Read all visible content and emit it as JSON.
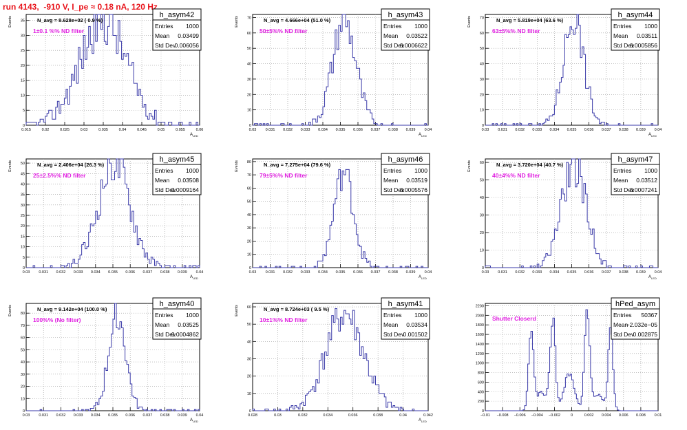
{
  "title": "run 4143,  -910 V, I_pe ≈ 0.18 nA, 120 Hz",
  "colors": {
    "histogram": "#3a3aa8",
    "title": "#e8141b",
    "annotation": "#e020e0",
    "grid": "#9a9a9a"
  },
  "chart_data": [
    {
      "type": "histogram",
      "name": "h_asym42",
      "stats": {
        "Entries": "1000",
        "Mean": "0.03499",
        "Std Dev": "0.006056"
      },
      "navg": "N_avg = 8.628e+02 ( 0.9 %)",
      "filter": "1±0.1 %% ND filter",
      "xlabel": "A_LED",
      "ylabel": "Events",
      "xlim": [
        0.015,
        0.06
      ],
      "ylim": [
        0,
        37
      ],
      "xticks": [
        "0.015",
        "0.02",
        "0.025",
        "0.03",
        "0.035",
        "0.04",
        "0.045",
        "0.05",
        "0.055",
        "0.06"
      ],
      "yticks": [
        "0",
        "5",
        "10",
        "15",
        "20",
        "25",
        "30",
        "35"
      ],
      "center": 0.035,
      "sigma": 0.006056,
      "nbins": 100,
      "peak": 35,
      "seed": 42
    },
    {
      "type": "histogram",
      "name": "h_asym43",
      "stats": {
        "Entries": "1000",
        "Mean": "0.03522",
        "Std Dev": "0.0006622"
      },
      "navg": "N_avg = 4.666e+04 (51.0 %)",
      "filter": "50±5%% ND filter",
      "xlabel": "A_LED",
      "ylabel": "Events",
      "xlim": [
        0.03,
        0.04
      ],
      "ylim": [
        0,
        72
      ],
      "xticks": [
        "0.03",
        "0.031",
        "0.032",
        "0.033",
        "0.034",
        "0.035",
        "0.036",
        "0.037",
        "0.038",
        "0.039",
        "0.04"
      ],
      "yticks": [
        "0",
        "10",
        "20",
        "30",
        "40",
        "50",
        "60",
        "70"
      ],
      "center": 0.03522,
      "sigma": 0.0006622,
      "nbins": 100,
      "peak": 68,
      "seed": 43
    },
    {
      "type": "histogram",
      "name": "h_asym44",
      "stats": {
        "Entries": "1000",
        "Mean": "0.03511",
        "Std Dev": "0.0005856"
      },
      "navg": "N_avg = 5.819e+04 (63.6 %)",
      "filter": "63±5%% ND filter",
      "xlabel": "A_LED",
      "ylabel": "Events",
      "xlim": [
        0.03,
        0.04
      ],
      "ylim": [
        0,
        72
      ],
      "xticks": [
        "0.03",
        "0.031",
        "0.032",
        "0.033",
        "0.034",
        "0.035",
        "0.036",
        "0.037",
        "0.038",
        "0.039",
        "0.04"
      ],
      "yticks": [
        "0",
        "10",
        "20",
        "30",
        "40",
        "50",
        "60",
        "70"
      ],
      "center": 0.03511,
      "sigma": 0.0005856,
      "nbins": 100,
      "peak": 70,
      "seed": 44
    },
    {
      "type": "histogram",
      "name": "h_asym45",
      "stats": {
        "Entries": "1000",
        "Mean": "0.03508",
        "Std Dev": "0.0009164"
      },
      "navg": "N_avg = 2.406e+04 (26.3 %)",
      "filter": "25±2.5%% ND filter",
      "xlabel": "A_LED",
      "ylabel": "Events",
      "xlim": [
        0.03,
        0.04
      ],
      "ylim": [
        0,
        52
      ],
      "xticks": [
        "0.03",
        "0.031",
        "0.032",
        "0.033",
        "0.034",
        "0.035",
        "0.036",
        "0.037",
        "0.038",
        "0.039",
        "0.04"
      ],
      "yticks": [
        "0",
        "5",
        "10",
        "15",
        "20",
        "25",
        "30",
        "35",
        "40",
        "45",
        "50"
      ],
      "center": 0.03508,
      "sigma": 0.0009164,
      "nbins": 100,
      "peak": 50,
      "seed": 45
    },
    {
      "type": "histogram",
      "name": "h_asym46",
      "stats": {
        "Entries": "1000",
        "Mean": "0.03519",
        "Std Dev": "0.0005576"
      },
      "navg": "N_avg = 7.275e+04 (79.6 %)",
      "filter": "79±5%% ND filter",
      "xlabel": "A_LED",
      "ylabel": "Events",
      "xlim": [
        0.03,
        0.04
      ],
      "ylim": [
        0,
        82
      ],
      "xticks": [
        "0.03",
        "0.031",
        "0.032",
        "0.033",
        "0.034",
        "0.035",
        "0.036",
        "0.037",
        "0.038",
        "0.039",
        "0.04"
      ],
      "yticks": [
        "0",
        "10",
        "20",
        "30",
        "40",
        "50",
        "60",
        "70",
        "80"
      ],
      "center": 0.03519,
      "sigma": 0.0005576,
      "nbins": 100,
      "peak": 72,
      "seed": 46
    },
    {
      "type": "histogram",
      "name": "h_asym47",
      "stats": {
        "Entries": "1000",
        "Mean": "0.03512",
        "Std Dev": "0.0007241"
      },
      "navg": "N_avg = 3.720e+04 (40.7 %)",
      "filter": "40±4%% ND filter",
      "xlabel": "A_LED",
      "ylabel": "Events",
      "xlim": [
        0.03,
        0.04
      ],
      "ylim": [
        0,
        62
      ],
      "xticks": [
        "0.03",
        "0.031",
        "0.032",
        "0.033",
        "0.034",
        "0.035",
        "0.036",
        "0.037",
        "0.038",
        "0.039",
        "0.04"
      ],
      "yticks": [
        "0",
        "10",
        "20",
        "30",
        "40",
        "50",
        "60"
      ],
      "center": 0.03512,
      "sigma": 0.0007241,
      "nbins": 100,
      "peak": 58,
      "seed": 47
    },
    {
      "type": "histogram",
      "name": "h_asym40",
      "stats": {
        "Entries": "1000",
        "Mean": "0.03525",
        "Std Dev": "0.0004862"
      },
      "navg": "N_avg = 9.142e+04 (100.0 %)",
      "filter": "100%% (No filter)",
      "xlabel": "A_LED",
      "ylabel": "Events",
      "xlim": [
        0.03,
        0.04
      ],
      "ylim": [
        0,
        88
      ],
      "xticks": [
        "0.03",
        "0.031",
        "0.032",
        "0.033",
        "0.034",
        "0.035",
        "0.036",
        "0.037",
        "0.038",
        "0.039",
        "0.04"
      ],
      "yticks": [
        "0",
        "10",
        "20",
        "30",
        "40",
        "50",
        "60",
        "70",
        "80"
      ],
      "center": 0.03525,
      "sigma": 0.0004862,
      "nbins": 100,
      "peak": 80,
      "seed": 40
    },
    {
      "type": "histogram",
      "name": "h_asym41",
      "stats": {
        "Entries": "1000",
        "Mean": "0.03534",
        "Std Dev": "0.001502"
      },
      "navg": "N_avg = 8.724e+03 ( 9.5 %)",
      "filter": "10±1%% ND filter",
      "xlabel": "A_LED",
      "ylabel": "Events",
      "xlim": [
        0.028,
        0.042
      ],
      "ylim": [
        0,
        62
      ],
      "xticks": [
        "0.028",
        "0.03",
        "0.032",
        "0.034",
        "0.036",
        "0.038",
        "0.04",
        "0.042"
      ],
      "yticks": [
        "0",
        "10",
        "20",
        "30",
        "40",
        "50",
        "60"
      ],
      "center": 0.03534,
      "sigma": 0.001502,
      "nbins": 100,
      "peak": 56,
      "seed": 41
    },
    {
      "type": "histogram",
      "name": "hPed_asym",
      "stats": {
        "Entries": "50367",
        "Mean": "−2.032e−05",
        "Std Dev": "0.002875"
      },
      "navg": "",
      "filter": "Shutter Closerd",
      "xlabel": "",
      "ylabel": "",
      "xlim": [
        -0.01,
        0.01
      ],
      "ylim": [
        0,
        2250
      ],
      "xticks": [
        "−0.01",
        "−0.008",
        "−0.006",
        "−0.004",
        "−0.002",
        "0",
        "0.002",
        "0.004",
        "0.006",
        "0.008",
        "0.01"
      ],
      "yticks": [
        "0",
        "200",
        "400",
        "600",
        "800",
        "1000",
        "1200",
        "1400",
        "1600",
        "1800",
        "2000",
        "2200"
      ],
      "peaks": [
        {
          "center": -0.0047,
          "sigma": 0.00028,
          "height": 1650
        },
        {
          "center": -0.0022,
          "sigma": 0.0003,
          "height": 1950
        },
        {
          "center": 0.0018,
          "sigma": 0.0003,
          "height": 2080
        },
        {
          "center": 0.0045,
          "sigma": 0.00028,
          "height": 1700
        }
      ],
      "valleys": [
        {
          "center": -0.0035,
          "sigma": 0.0006,
          "height": 380
        },
        {
          "center": -0.0003,
          "sigma": 0.0006,
          "height": 780
        },
        {
          "center": 0.003,
          "sigma": 0.0006,
          "height": 330
        }
      ],
      "nbins": 110,
      "seed": 99
    }
  ]
}
